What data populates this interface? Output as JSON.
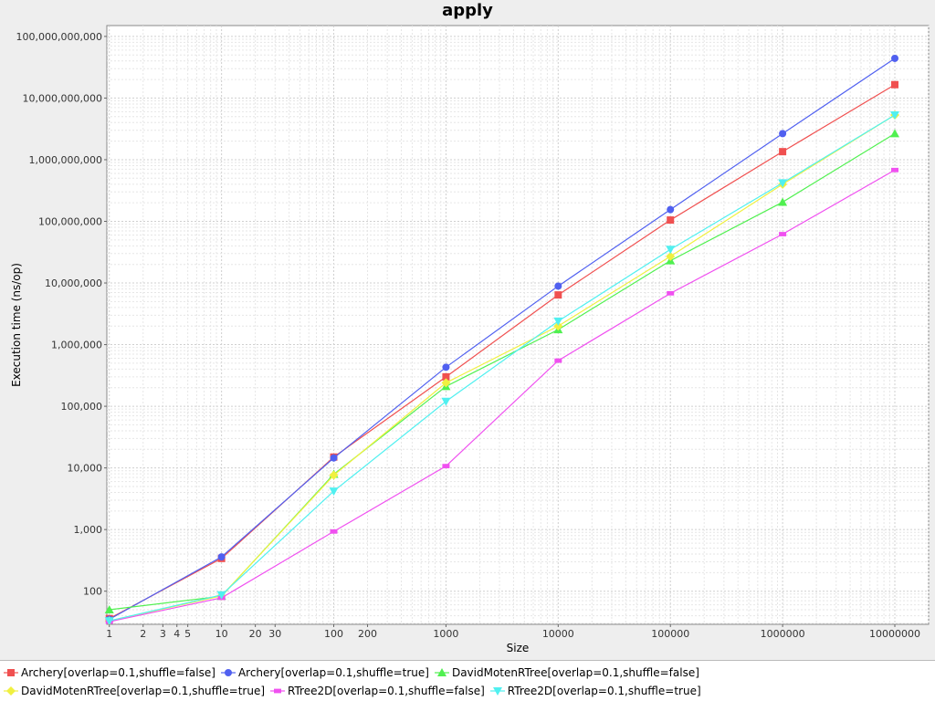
{
  "chart_data": {
    "type": "line",
    "title": "apply",
    "xlabel": "Size",
    "ylabel": "Execution time (ns/op)",
    "x_scale": "log",
    "y_scale": "log",
    "xlim": [
      0.95,
      20000000
    ],
    "ylim": [
      29,
      150000000000
    ],
    "x_ticks": [
      {
        "value": 1,
        "label": "1"
      },
      {
        "value": 2,
        "label": "2"
      },
      {
        "value": 3,
        "label": "3"
      },
      {
        "value": 4,
        "label": "4"
      },
      {
        "value": 5,
        "label": "5"
      },
      {
        "value": 10,
        "label": "10"
      },
      {
        "value": 20,
        "label": "20"
      },
      {
        "value": 30,
        "label": "30"
      },
      {
        "value": 100,
        "label": "100"
      },
      {
        "value": 200,
        "label": "200"
      },
      {
        "value": 1000,
        "label": "1000"
      },
      {
        "value": 10000,
        "label": "10000"
      },
      {
        "value": 100000,
        "label": "100000"
      },
      {
        "value": 1000000,
        "label": "1000000"
      },
      {
        "value": 10000000,
        "label": "10000000"
      }
    ],
    "y_ticks": [
      {
        "value": 100,
        "label": "100"
      },
      {
        "value": 1000,
        "label": "1,000"
      },
      {
        "value": 10000,
        "label": "10,000"
      },
      {
        "value": 100000,
        "label": "100,000"
      },
      {
        "value": 1000000,
        "label": "1,000,000"
      },
      {
        "value": 10000000,
        "label": "10,000,000"
      },
      {
        "value": 100000000,
        "label": "100,000,000"
      },
      {
        "value": 1000000000,
        "label": "1,000,000,000"
      },
      {
        "value": 10000000000,
        "label": "10,000,000,000"
      },
      {
        "value": 100000000000,
        "label": "100,000,000,000"
      }
    ],
    "grid": true,
    "legend_position": "bottom",
    "x": [
      1,
      10,
      100,
      1000,
      10000,
      100000,
      1000000,
      10000000
    ],
    "series": [
      {
        "name": "Archery[overlap=0.1,shuffle=false]",
        "color": "#f05050",
        "marker": "square",
        "values": [
          36,
          340,
          15000,
          300000,
          6400000,
          105000000,
          1350000000,
          16500000000
        ]
      },
      {
        "name": "Archery[overlap=0.1,shuffle=true]",
        "color": "#5060f0",
        "marker": "circle",
        "values": [
          35,
          360,
          14500,
          430000,
          8900000,
          155000000,
          2650000000,
          44000000000
        ]
      },
      {
        "name": "DavidMotenRTree[overlap=0.1,shuffle=false]",
        "color": "#50f050",
        "marker": "triangle-up",
        "values": [
          50,
          83,
          7900,
          210000,
          1750000,
          23000000,
          205000000,
          2650000000
        ]
      },
      {
        "name": "DavidMotenRTree[overlap=0.1,shuffle=true]",
        "color": "#f0f040",
        "marker": "diamond",
        "values": [
          33,
          84,
          7600,
          240000,
          2000000,
          27000000,
          400000000,
          5300000000
        ]
      },
      {
        "name": "RTree2D[overlap=0.1,shuffle=false]",
        "color": "#f050f0",
        "marker": "rect",
        "values": [
          32,
          78,
          930,
          10700,
          550000,
          6800000,
          62000000,
          680000000
        ]
      },
      {
        "name": "RTree2D[overlap=0.1,shuffle=true]",
        "color": "#50f0f0",
        "marker": "triangle-down",
        "values": [
          33,
          87,
          4200,
          120000,
          2400000,
          35000000,
          420000000,
          5300000000
        ]
      }
    ]
  }
}
